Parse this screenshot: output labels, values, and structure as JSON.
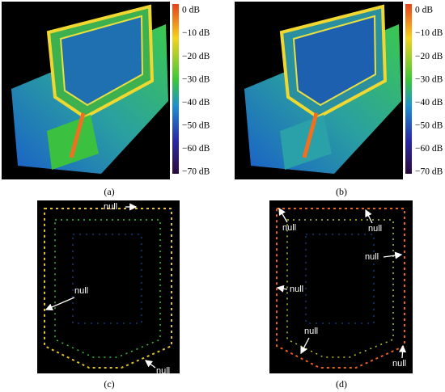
{
  "panels": [
    {
      "label": "(a)",
      "colorbar": [
        "0 dB",
        "−10 dB",
        "−20 dB",
        "−30 dB",
        "−40 dB",
        "−50 dB",
        "−60 dB",
        "−70 dB"
      ]
    },
    {
      "label": "(b)",
      "colorbar": [
        "0 dB",
        "−10 dB",
        "−20 dB",
        "−30 dB",
        "−40 dB",
        "−50 dB",
        "−60 dB",
        "−70 dB"
      ]
    },
    {
      "label": "(c)",
      "annotations": [
        "null",
        "null",
        "null"
      ]
    },
    {
      "label": "(d)",
      "annotations": [
        "null",
        "null",
        "null",
        "null",
        "null",
        "null"
      ]
    }
  ]
}
